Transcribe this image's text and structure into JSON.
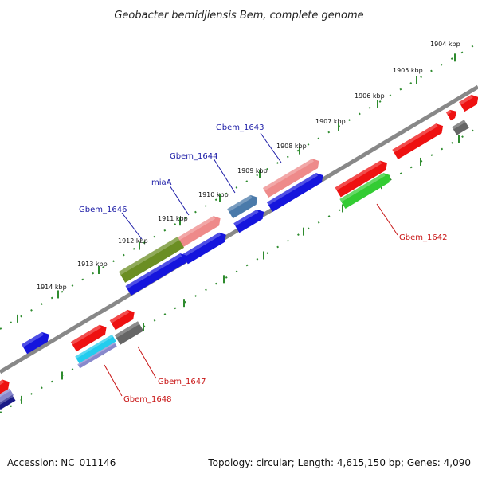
{
  "title": "Geobacter bemidjiensis Bem, complete genome",
  "footer": {
    "accession": "Accession: NC_011146",
    "summary": "Topology: circular; Length: 4,615,150 bp; Genes: 4,090"
  },
  "ruler": {
    "tick_labels": [
      "1904 kbp",
      "1905 kbp",
      "1906 kbp",
      "1907 kbp",
      "1908 kbp",
      "1909 kbp",
      "1910 kbp",
      "1911 kbp",
      "1912 kbp",
      "1913 kbp",
      "1914 kbp"
    ]
  },
  "gene_labels_top": [
    {
      "name": "Gbem_1643",
      "color": "#1a1aa6"
    },
    {
      "name": "Gbem_1644",
      "color": "#1a1aa6"
    },
    {
      "name": "miaA",
      "color": "#1a1aa6"
    },
    {
      "name": "Gbem_1646",
      "color": "#1a1aa6"
    }
  ],
  "gene_labels_bottom": [
    {
      "name": "Gbem_1642",
      "color": "#c81414"
    },
    {
      "name": "Gbem_1647",
      "color": "#c81414"
    },
    {
      "name": "Gbem_1648",
      "color": "#c81414"
    }
  ],
  "feature_colors": {
    "red": "#ee1111",
    "blue": "#1515dd",
    "pink": "#ee8a8a",
    "olive": "#6b8e23",
    "steel": "#4a7aaa",
    "green": "#33cc33",
    "gray": "#666666",
    "cyan": "#22ccee",
    "lavender": "#8888cc",
    "navy": "#1a1a88"
  }
}
